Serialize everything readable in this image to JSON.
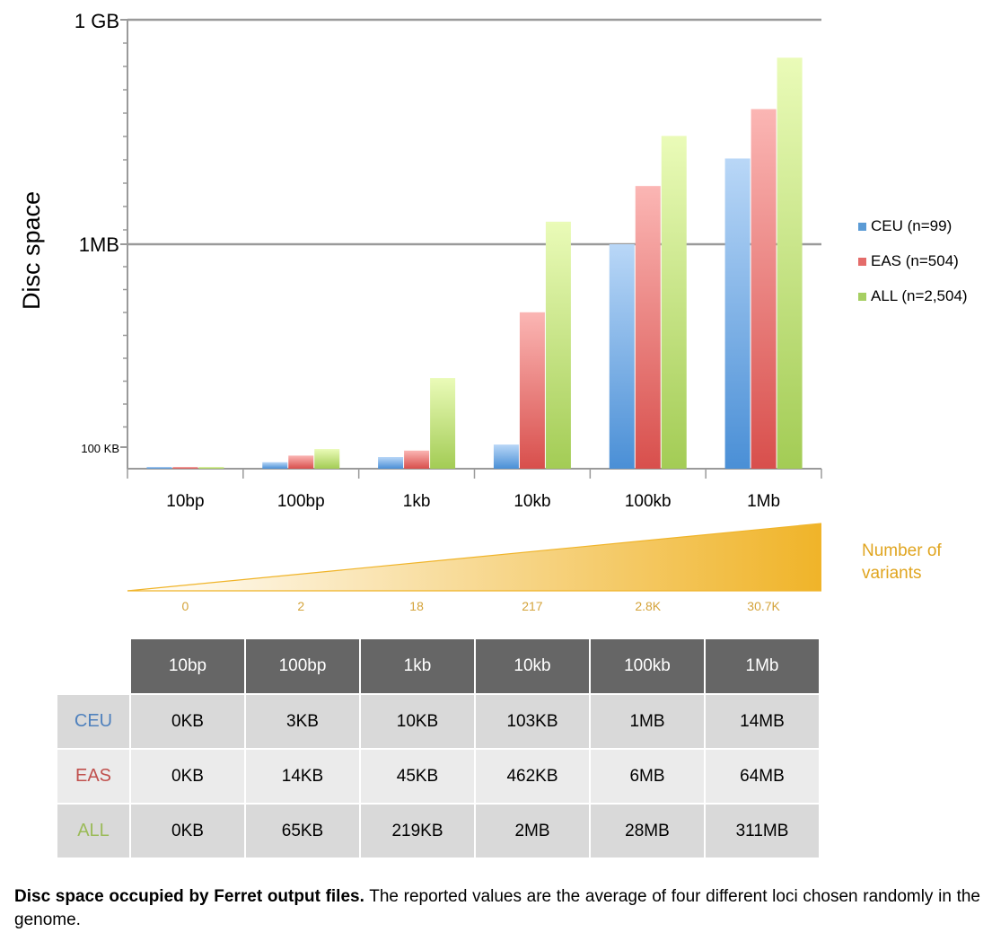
{
  "chart_data": {
    "type": "bar",
    "ylabel": "Disc space",
    "yscale": "log",
    "yticks": [
      {
        "label": "100 KB",
        "value_kb": 100
      },
      {
        "label": "1MB",
        "value_kb": 1000
      },
      {
        "label": "1 GB",
        "value_kb": 1000000
      }
    ],
    "categories": [
      "10bp",
      "100bp",
      "1kb",
      "10kb",
      "100kb",
      "1Mb"
    ],
    "series": [
      {
        "name": "CEU (n=99)",
        "color": "#5b9bd5",
        "values": [
          0,
          3,
          10,
          103,
          1000,
          14000
        ]
      },
      {
        "name": "EAS (n=504)",
        "color": "#e46c6a",
        "values": [
          0,
          14,
          45,
          462,
          6000,
          64000
        ]
      },
      {
        "name": "ALL (n=2,504)",
        "color": "#a6cf62",
        "values": [
          0,
          65,
          219,
          2000,
          28000,
          311000
        ]
      }
    ],
    "value_unit": "KB",
    "legend_position": "right",
    "variants": {
      "title": "Number of variants",
      "title_lines": [
        "Number of",
        "variants"
      ],
      "color": "#f0b429",
      "labels": [
        "0",
        "2",
        "18",
        "217",
        "2.8K",
        "30.7K"
      ]
    }
  },
  "table": {
    "columns": [
      "10bp",
      "100bp",
      "1kb",
      "10kb",
      "100kb",
      "1Mb"
    ],
    "rows": [
      {
        "label": "CEU",
        "color": "#4f81bd",
        "values": [
          "0KB",
          "3KB",
          "10KB",
          "103KB",
          "1MB",
          "14MB"
        ]
      },
      {
        "label": "EAS",
        "color": "#c0504d",
        "values": [
          "0KB",
          "14KB",
          "45KB",
          "462KB",
          "6MB",
          "64MB"
        ]
      },
      {
        "label": "ALL",
        "color": "#9bbb59",
        "values": [
          "0KB",
          "65KB",
          "219KB",
          "2MB",
          "28MB",
          "311MB"
        ]
      }
    ]
  },
  "caption": {
    "bold": "Disc space occupied by Ferret output files.",
    "text": " The reported values are the average of four different loci chosen randomly in the genome."
  }
}
